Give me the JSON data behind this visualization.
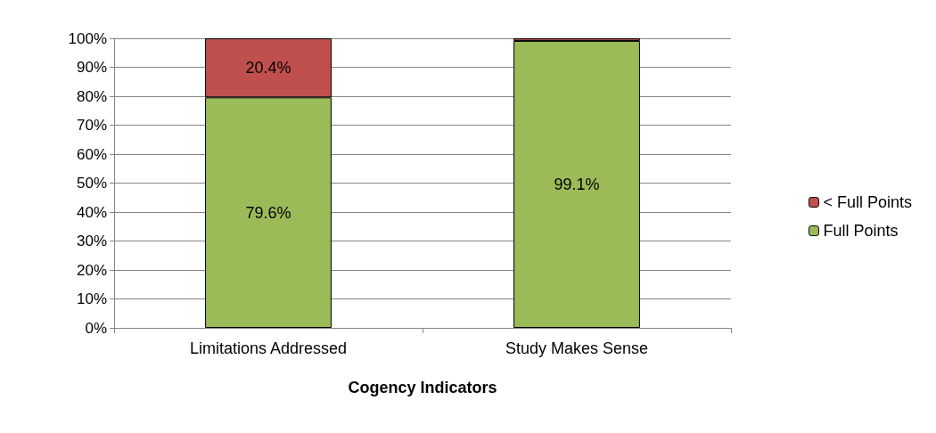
{
  "chart_data": {
    "type": "bar",
    "stacked": true,
    "xlabel": "Cogency Indicators",
    "categories": [
      "Limitations Addressed",
      "Study Makes Sense"
    ],
    "series": [
      {
        "name": "Full Points",
        "color": "#9bbb59",
        "values": [
          79.6,
          99.1
        ],
        "value_labels": [
          "79.6%",
          "99.1%"
        ]
      },
      {
        "name": "< Full Points",
        "color": "#c0504d",
        "values": [
          20.4,
          0.9
        ],
        "value_labels": [
          "20.4%",
          null
        ]
      }
    ],
    "ylim": [
      0,
      100
    ],
    "yticks": [
      {
        "value": 0,
        "label": "0%"
      },
      {
        "value": 10,
        "label": "10%"
      },
      {
        "value": 20,
        "label": "20%"
      },
      {
        "value": 30,
        "label": "30%"
      },
      {
        "value": 40,
        "label": "40%"
      },
      {
        "value": 50,
        "label": "50%"
      },
      {
        "value": 60,
        "label": "60%"
      },
      {
        "value": 70,
        "label": "70%"
      },
      {
        "value": 80,
        "label": "80%"
      },
      {
        "value": 90,
        "label": "90%"
      },
      {
        "value": 100,
        "label": "100%"
      }
    ],
    "grid": "y",
    "legend": "right"
  }
}
